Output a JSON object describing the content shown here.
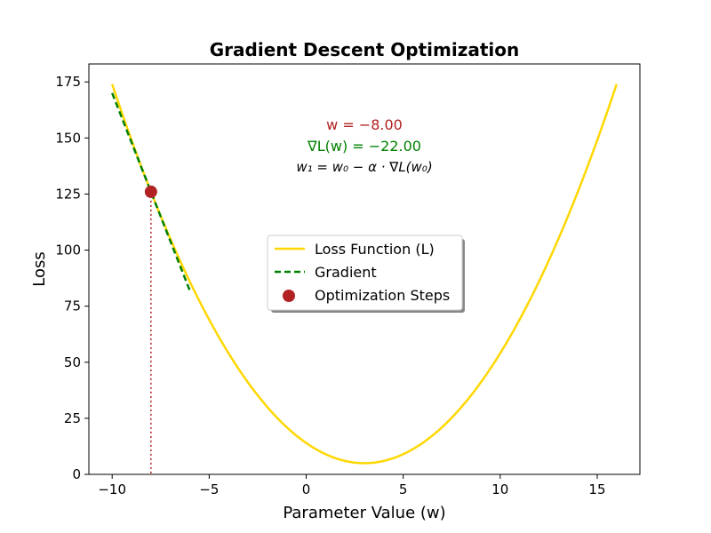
{
  "chart_data": {
    "type": "line",
    "title": "Gradient Descent Optimization",
    "xlabel": "Parameter Value (w)",
    "ylabel": "Loss",
    "xlim": [
      -11.2,
      17.2
    ],
    "ylim": [
      0,
      183
    ],
    "x_ticks": [
      -10,
      -5,
      0,
      5,
      10,
      15
    ],
    "x_tick_labels": [
      "−10",
      "−5",
      "0",
      "5",
      "10",
      "15"
    ],
    "y_ticks": [
      0,
      25,
      50,
      75,
      100,
      125,
      150,
      175
    ],
    "y_tick_labels": [
      "0",
      "25",
      "50",
      "75",
      "100",
      "125",
      "150",
      "175"
    ],
    "grid": false,
    "loss_function": {
      "a": 1,
      "min_x": 3,
      "min_y": 5,
      "x_range": [
        -10,
        16
      ]
    },
    "gradient_line": {
      "x_range": [
        -10,
        -6
      ]
    },
    "series": [
      {
        "name": "Loss Function (L)",
        "color": "#FFD700",
        "style": "solid"
      },
      {
        "name": "Gradient",
        "color": "#008000",
        "style": "dashed"
      },
      {
        "name": "Optimization Steps",
        "color": "#B22222",
        "style": "marker",
        "points": [
          {
            "x": -8,
            "y": 126
          }
        ]
      }
    ],
    "annotations": {
      "w_text": "w = −8.00",
      "grad_text": "∇L(w) = −22.00",
      "update_text": "w₁ = w₀ − α · ∇L(w₀)"
    },
    "legend": {
      "position": "center",
      "items": [
        "Loss Function (L)",
        "Gradient",
        "Optimization Steps"
      ]
    }
  }
}
